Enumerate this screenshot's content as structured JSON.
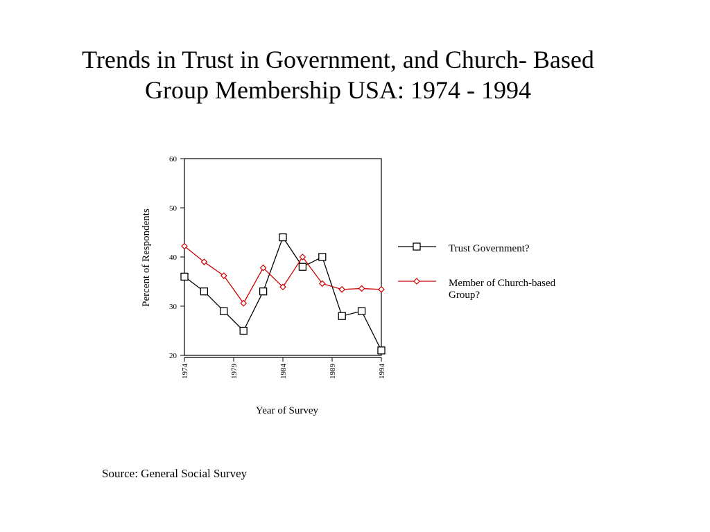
{
  "slide": {
    "title_lines": [
      "Trends in Trust in Government, and Church- Based",
      "Group Membership  USA: 1974 - 1994"
    ],
    "source": "Source: General Social Survey"
  },
  "chart_data": {
    "type": "line",
    "title": "",
    "xlabel": "Year of Survey",
    "ylabel": "Percent of Respondents",
    "x": [
      1974,
      1976,
      1978,
      1980,
      1982,
      1984,
      1986,
      1988,
      1990,
      1992,
      1994
    ],
    "xlim": [
      1974,
      1994
    ],
    "ylim": [
      20,
      60
    ],
    "x_ticks": [
      "1974",
      "1979",
      "1984",
      "1989",
      "1994"
    ],
    "x_tick_values": [
      1974,
      1979,
      1984,
      1989,
      1994
    ],
    "y_ticks": [
      "20",
      "30",
      "40",
      "50",
      "60"
    ],
    "y_tick_values": [
      20,
      30,
      40,
      50,
      60
    ],
    "grid": false,
    "legend_position": "right",
    "series": [
      {
        "name": "Trust Government?",
        "marker": "square",
        "color": "#000000",
        "values": [
          36,
          33,
          29,
          25,
          33,
          44,
          38,
          40,
          28,
          29,
          21
        ]
      },
      {
        "name": "Member of Church-based Group?",
        "legend_lines": [
          "Member of Church-based",
          "Group?"
        ],
        "marker": "diamond",
        "color": "#cc0000",
        "values": [
          42.2,
          39,
          36.2,
          30.6,
          37.8,
          33.9,
          40,
          34.6,
          33.4,
          33.6,
          33.4
        ]
      }
    ]
  }
}
